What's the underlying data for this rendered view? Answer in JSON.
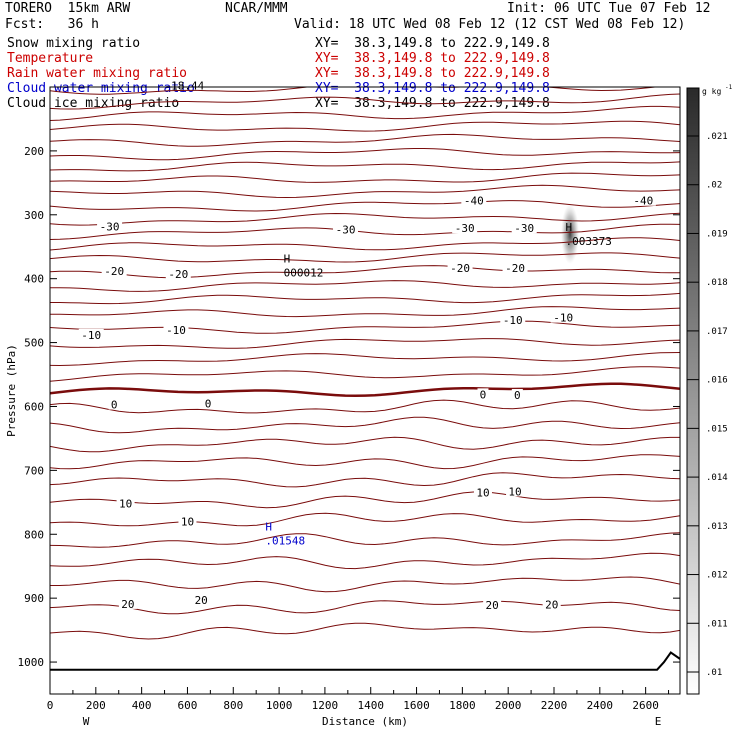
{
  "header": {
    "model": "TORERO  15km ARW",
    "org": "NCAR/MMM",
    "init": "Init: 06 UTC Tue 07 Feb 12",
    "fcst": "Fcst:   36 h",
    "valid": "Valid: 18 UTC Wed 08 Feb 12 (12 CST Wed 08 Feb 12)"
  },
  "fields": [
    {
      "label": "Snow mixing ratio",
      "xy": "XY=  38.3,149.8 to 222.9,149.8",
      "color": "#000000"
    },
    {
      "label": "Temperature",
      "xy": "XY=  38.3,149.8 to 222.9,149.8",
      "color": "#cc0000"
    },
    {
      "label": "Rain water mixing ratio",
      "xy": "XY=  38.3,149.8 to 222.9,149.8",
      "color": "#cc0000"
    },
    {
      "label": "Cloud water mixing ratio",
      "xy": "XY=  38.3,149.8 to 222.9,149.8",
      "color": "#0000cc"
    },
    {
      "label": "Cloud ice mixing ratio",
      "xy": "XY=  38.3,149.8 to 222.9,149.8",
      "color": "#000000"
    }
  ],
  "chart_data": {
    "type": "contour",
    "xlabel": "Distance (km)",
    "ylabel": "Pressure (hPa)",
    "xlim": [
      0,
      2750
    ],
    "ylim": [
      1050,
      100
    ],
    "x_ticks": [
      0,
      200,
      400,
      600,
      800,
      1000,
      1200,
      1400,
      1600,
      1800,
      2000,
      2200,
      2400,
      2600
    ],
    "y_ticks": [
      200,
      300,
      400,
      500,
      600,
      700,
      800,
      900,
      1000
    ],
    "x_end_labels": [
      "W",
      "E"
    ],
    "temperature_isotherms": [
      {
        "value": -40,
        "pressure_levels": [
          106,
          127,
          147,
          167,
          188,
          208,
          228,
          249,
          269,
          290
        ]
      },
      {
        "value": -30,
        "pressure_levels": [
          310,
          331
        ]
      },
      {
        "value": -20,
        "pressure_levels": [
          352,
          372,
          393,
          414,
          436
        ]
      },
      {
        "value": -10,
        "pressure_levels": [
          458,
          481,
          505,
          529,
          554
        ]
      },
      {
        "value": 0,
        "pressure_levels": [
          580
        ]
      },
      {
        "value": 10,
        "pressure_levels": [
          607,
          634,
          662,
          691,
          720,
          751,
          782
        ]
      },
      {
        "value": 20,
        "pressure_levels": [
          815,
          848,
          882,
          917,
          954
        ]
      }
    ],
    "contour_labels": [
      {
        "text": "-40",
        "x": 1850,
        "p": 278
      },
      {
        "text": "-40",
        "x": 2590,
        "p": 278
      },
      {
        "text": "-30",
        "x": 260,
        "p": 318
      },
      {
        "text": "-30",
        "x": 1290,
        "p": 323
      },
      {
        "text": "-30",
        "x": 1810,
        "p": 321
      },
      {
        "text": "-30",
        "x": 2070,
        "p": 321
      },
      {
        "text": "-20",
        "x": 280,
        "p": 388
      },
      {
        "text": "-20",
        "x": 560,
        "p": 393
      },
      {
        "text": "-20",
        "x": 1790,
        "p": 383
      },
      {
        "text": "-20",
        "x": 2030,
        "p": 383
      },
      {
        "text": "-10",
        "x": 180,
        "p": 488
      },
      {
        "text": "-10",
        "x": 550,
        "p": 480
      },
      {
        "text": "-10",
        "x": 2020,
        "p": 465
      },
      {
        "text": "-10",
        "x": 2240,
        "p": 461
      },
      {
        "text": "0",
        "x": 280,
        "p": 597
      },
      {
        "text": "0",
        "x": 690,
        "p": 595
      },
      {
        "text": "0",
        "x": 1890,
        "p": 581
      },
      {
        "text": "0",
        "x": 2040,
        "p": 582
      },
      {
        "text": "10",
        "x": 330,
        "p": 752
      },
      {
        "text": "10",
        "x": 600,
        "p": 780
      },
      {
        "text": "10",
        "x": 1890,
        "p": 735
      },
      {
        "text": "10",
        "x": 2030,
        "p": 733
      },
      {
        "text": "20",
        "x": 340,
        "p": 909
      },
      {
        "text": "20",
        "x": 660,
        "p": 903
      },
      {
        "text": "20",
        "x": 1930,
        "p": 911
      },
      {
        "text": "20",
        "x": 2190,
        "p": 910
      }
    ],
    "maxima": [
      {
        "text": "H",
        "value": "000012",
        "x": 1020,
        "p": 387,
        "color": "#000000"
      },
      {
        "text": "H",
        "value": ".003373",
        "x": 2250,
        "p": 338,
        "color": "#000000"
      },
      {
        "text": "H",
        "value": ".01548",
        "x": 940,
        "p": 807,
        "color": "#0000cc"
      }
    ],
    "extra_label": {
      "text": "-18.44",
      "x": 500,
      "p": 104
    },
    "colorbar": {
      "title": "g kg",
      "title_exponent": "-1",
      "ticks": [
        ".021",
        ".02",
        ".019",
        ".018",
        ".017",
        ".016",
        ".015",
        ".014",
        ".013",
        ".012",
        ".011",
        ".01"
      ],
      "top_color": "#2a2a2a",
      "bottom_color": "#ffffff"
    },
    "colors": {
      "isotherm": "#7a0c0c",
      "cloud_water": "#0000cc",
      "axes": "#000000",
      "terrain": "#000000"
    }
  }
}
